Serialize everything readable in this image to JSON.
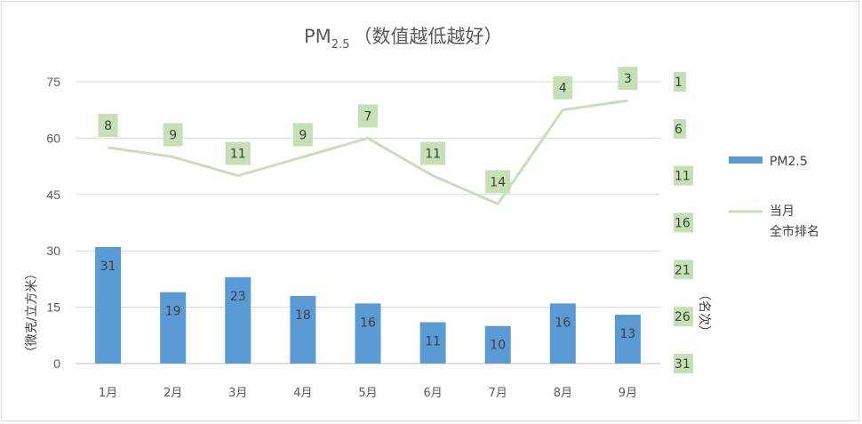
{
  "title": {
    "prefix": "PM",
    "subscript": "2.5",
    "suffix": "（数值越低越好）"
  },
  "chart_data": {
    "type": "bar",
    "categories": [
      "1月",
      "2月",
      "3月",
      "4月",
      "5月",
      "6月",
      "7月",
      "8月",
      "9月"
    ],
    "series": [
      {
        "name": "PM2.5",
        "type": "bar",
        "axis": "left",
        "values": [
          31,
          19,
          23,
          18,
          16,
          11,
          10,
          16,
          13
        ]
      },
      {
        "name": "当月全市排名",
        "type": "line",
        "axis": "right",
        "values": [
          8,
          9,
          11,
          9,
          7,
          11,
          14,
          4,
          3
        ]
      }
    ],
    "y_left": {
      "label": "（微克/立方米）",
      "ticks": [
        "0",
        "15",
        "30",
        "45",
        "60",
        "75"
      ],
      "ylim": [
        0,
        75
      ]
    },
    "y_right": {
      "label": "（名次）",
      "ticks": [
        "1",
        "6",
        "11",
        "16",
        "21",
        "26",
        "31"
      ],
      "ylim": [
        1,
        31
      ],
      "reversed": true
    },
    "colors": {
      "bar": "#5b9bd5",
      "line": "#c5e0b4",
      "label_box": "#c5e0b4",
      "grid": "#d9d9d9"
    },
    "grid": true,
    "legend": {
      "position": "right",
      "items": [
        {
          "label": "PM2.5",
          "type": "bar"
        },
        {
          "label_line1": "当月",
          "label_line2": "全市排名",
          "type": "line"
        }
      ]
    }
  }
}
